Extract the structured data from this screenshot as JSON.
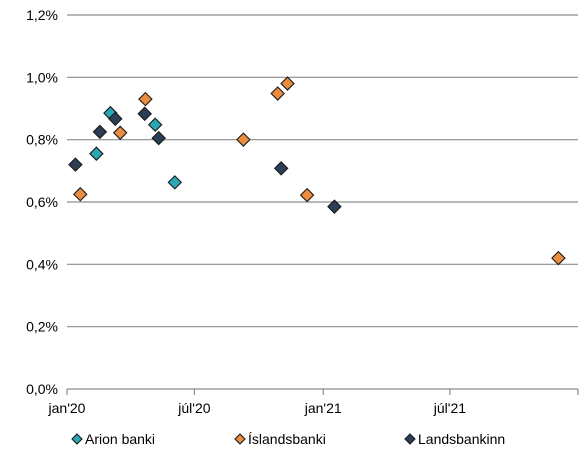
{
  "chart_data": {
    "type": "scatter",
    "title": "",
    "xlabel": "",
    "ylabel": "",
    "ylim": [
      0.0,
      1.2
    ],
    "xlim": [
      "2020-01-01",
      "2021-12-31"
    ],
    "y_ticks": [
      {
        "value": 0.0,
        "label": "0,0%"
      },
      {
        "value": 0.2,
        "label": "0,2%"
      },
      {
        "value": 0.4,
        "label": "0,4%"
      },
      {
        "value": 0.6,
        "label": "0,6%"
      },
      {
        "value": 0.8,
        "label": "0,8%"
      },
      {
        "value": 1.0,
        "label": "1,0%"
      },
      {
        "value": 1.2,
        "label": "1,2%"
      }
    ],
    "x_ticks": [
      {
        "value": "2020-01-01",
        "label": "jan'20"
      },
      {
        "value": "2020-07-01",
        "label": "júl'20"
      },
      {
        "value": "2021-01-01",
        "label": "jan'21"
      },
      {
        "value": "2021-07-01",
        "label": "júl'21"
      }
    ],
    "grid": "horizontal",
    "legend_position": "bottom",
    "series": [
      {
        "name": "Arion banki",
        "color": "#2aa7b5",
        "points": [
          {
            "x": "2020-02-12",
            "y": 0.755
          },
          {
            "x": "2020-03-03",
            "y": 0.885
          },
          {
            "x": "2020-05-06",
            "y": 0.848
          },
          {
            "x": "2020-06-03",
            "y": 0.663
          }
        ]
      },
      {
        "name": "Íslandsbanki",
        "color": "#ea8d3f",
        "points": [
          {
            "x": "2020-01-20",
            "y": 0.625
          },
          {
            "x": "2020-03-17",
            "y": 0.822
          },
          {
            "x": "2020-04-22",
            "y": 0.93
          },
          {
            "x": "2020-09-09",
            "y": 0.8
          },
          {
            "x": "2020-10-28",
            "y": 0.948
          },
          {
            "x": "2020-11-11",
            "y": 0.98
          },
          {
            "x": "2020-12-09",
            "y": 0.622
          },
          {
            "x": "2021-12-03",
            "y": 0.42
          }
        ]
      },
      {
        "name": "Landsbankinn",
        "color": "#2b3e55",
        "points": [
          {
            "x": "2020-01-13",
            "y": 0.72
          },
          {
            "x": "2020-02-17",
            "y": 0.825
          },
          {
            "x": "2020-03-10",
            "y": 0.867
          },
          {
            "x": "2020-04-21",
            "y": 0.883
          },
          {
            "x": "2020-05-11",
            "y": 0.805
          },
          {
            "x": "2020-11-02",
            "y": 0.708
          },
          {
            "x": "2021-01-17",
            "y": 0.585
          }
        ]
      }
    ]
  }
}
